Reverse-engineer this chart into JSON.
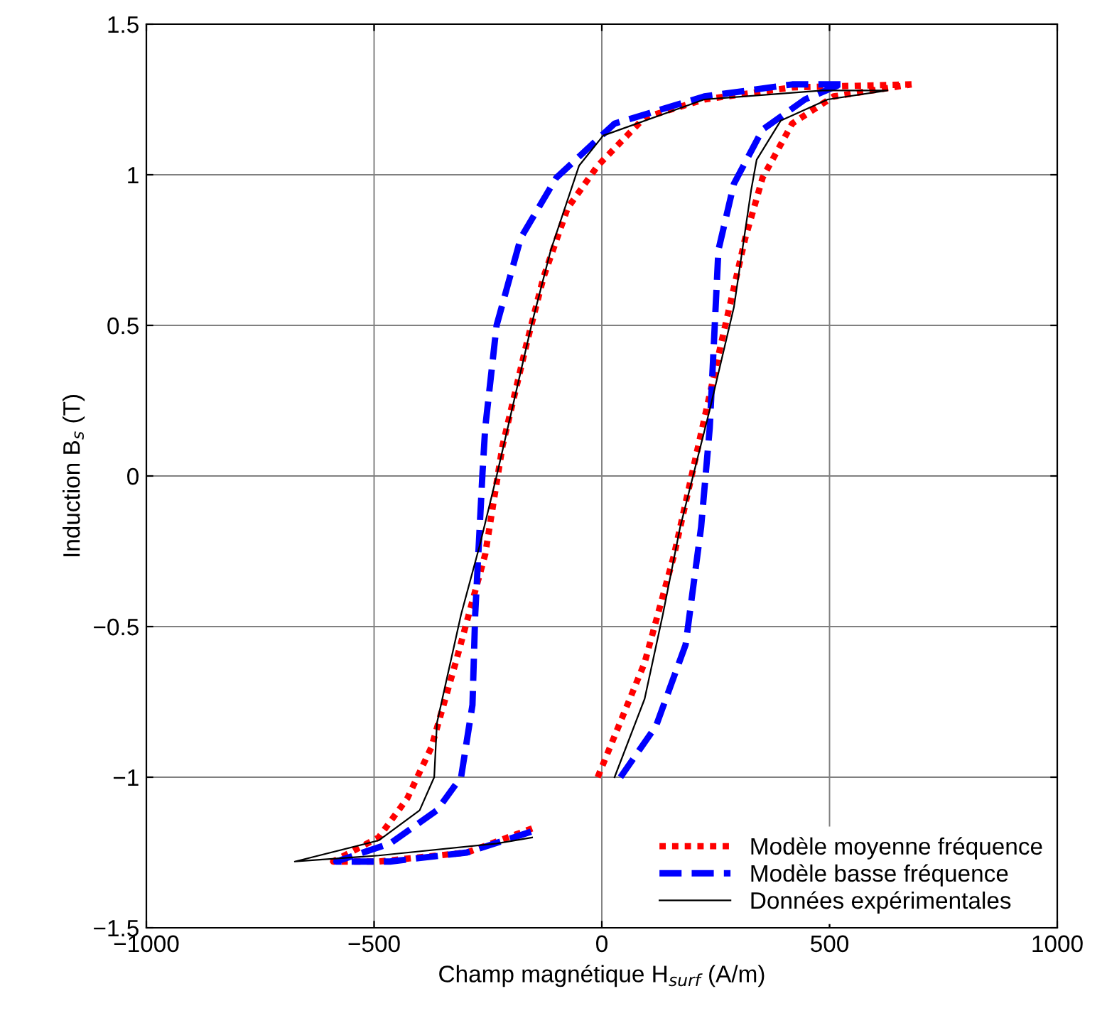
{
  "chart_data": {
    "type": "line",
    "xlabel": "Champ magnétique H$_{surf}$ (A/m)",
    "ylabel": "Induction B$_{s}$ (T)",
    "xlim": [
      -1000,
      1000
    ],
    "xticks": [
      -1000,
      -500,
      0,
      500,
      1000
    ],
    "ylim": [
      -1.5,
      1.5
    ],
    "yticks": [
      -1.5,
      -1,
      -0.5,
      0,
      0.5,
      1,
      1.5
    ],
    "grid": true,
    "legend": "bottom right",
    "series": [
      {
        "name": "Modèle moyenne fréquence",
        "color": "#ff0000",
        "line_style": "dotted",
        "x": [
          680,
          418,
          225,
          94,
          -9,
          -75,
          -128,
          -165,
          -218,
          -256,
          -321,
          -374,
          -427,
          -490,
          -590,
          -490,
          -296,
          -153,
          null,
          -9,
          94,
          159,
          200,
          262,
          315,
          353,
          418,
          509,
          680
        ],
        "values": [
          1.3,
          1.29,
          1.25,
          1.19,
          1.03,
          0.89,
          0.66,
          0.44,
          0.1,
          -0.26,
          -0.62,
          -0.9,
          -1.07,
          -1.2,
          -1.28,
          -1.28,
          -1.25,
          -1.17,
          null,
          -1.0,
          -0.62,
          -0.26,
          0.02,
          0.44,
          0.79,
          0.99,
          1.17,
          1.26,
          1.3
        ]
      },
      {
        "name": "Modèle basse fréquence",
        "color": "#0000ff",
        "line_style": "dashed",
        "x": [
          524,
          418,
          225,
          28,
          -100,
          -178,
          -231,
          -256,
          -262,
          -278,
          -284,
          -309,
          -362,
          -465,
          -583,
          -465,
          -296,
          -153,
          null,
          41,
          119,
          184,
          218,
          237,
          256,
          290,
          353,
          446,
          524
        ],
        "values": [
          1.3,
          1.3,
          1.26,
          1.17,
          0.99,
          0.79,
          0.5,
          0.16,
          0.01,
          -0.46,
          -0.76,
          -1.0,
          -1.11,
          -1.22,
          -1.28,
          -1.28,
          -1.25,
          -1.18,
          null,
          -1.0,
          -0.83,
          -0.56,
          -0.17,
          0.16,
          0.75,
          0.97,
          1.15,
          1.25,
          1.3
        ]
      },
      {
        "name": "Données expérimentales",
        "color": "#000000",
        "line_style": "solid",
        "x": [
          627,
          484,
          225,
          3,
          -50,
          -112,
          -153,
          -231,
          -268,
          -309,
          -362,
          -368,
          -400,
          -490,
          -674,
          -490,
          -231,
          -153,
          null,
          28,
          94,
          134,
          172,
          237,
          290,
          328,
          340,
          393,
          496,
          627
        ],
        "values": [
          1.28,
          1.28,
          1.25,
          1.13,
          1.03,
          0.75,
          0.51,
          0.0,
          -0.23,
          -0.46,
          -0.82,
          -1.0,
          -1.11,
          -1.21,
          -1.28,
          -1.26,
          -1.22,
          -1.2,
          null,
          -1.0,
          -0.74,
          -0.46,
          -0.17,
          0.22,
          0.56,
          0.95,
          1.05,
          1.18,
          1.25,
          1.28
        ]
      }
    ]
  }
}
